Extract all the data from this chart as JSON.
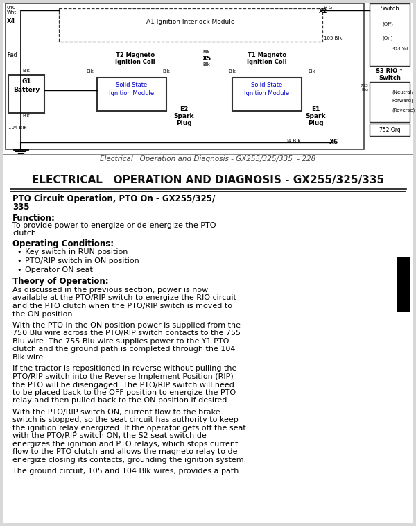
{
  "bg_color": "#ffffff",
  "page_bg": "#d8d8d8",
  "caption_text": "Electrical   Operation and Diagnosis - GX255/325/335  - 228",
  "section_title": "ELECTRICAL   OPERATION AND DIAGNOSIS - GX255/325/335",
  "bullets": [
    "Key switch in RUN position",
    "PTO/RIP switch in ON position",
    "Operator ON seat"
  ],
  "para_lines": [
    [
      "As discussed in the previous section, power is now",
      "available at the PTO/RIP switch to energize the RIO circuit",
      "and the PTO clutch when the PTO/RIP switch is moved to",
      "the ON position."
    ],
    [
      "With the PTO in the ON position power is supplied from the",
      "750 Blu wire across the PTO/RIP switch contacts to the 755",
      "Blu wire. The 755 Blu wire supplies power to the Y1 PTO",
      "clutch and the ground path is completed through the 104",
      "Blk wire."
    ],
    [
      "If the tractor is repositioned in reverse without pulling the",
      "PTO/RIP switch into the Reverse Implement Position (RIP)",
      "the PTO will be disengaged. The PTO/RIP switch will need",
      "to be placed back to the OFF position to energize the PTO",
      "relay and then pulled back to the ON position if desired."
    ],
    [
      "With the PTO/RIP switch ON, current flow to the brake",
      "switch is stopped, so the seat circuit has authority to keep",
      "the ignition relay energized. If the operator gets off the seat",
      "with the PTO/RIP switch ON, the S2 seat switch de-",
      "energizes the ignition and PTO relays, which stops current",
      "flow to the PTO clutch and allows the magneto relay to de-",
      "energize closing its contacts, grounding the ignition system."
    ],
    [
      "The ground circuit, 105 and 104 Blk wires, provides a path..."
    ]
  ],
  "black_tab": [
    573,
    370,
    18,
    80
  ]
}
